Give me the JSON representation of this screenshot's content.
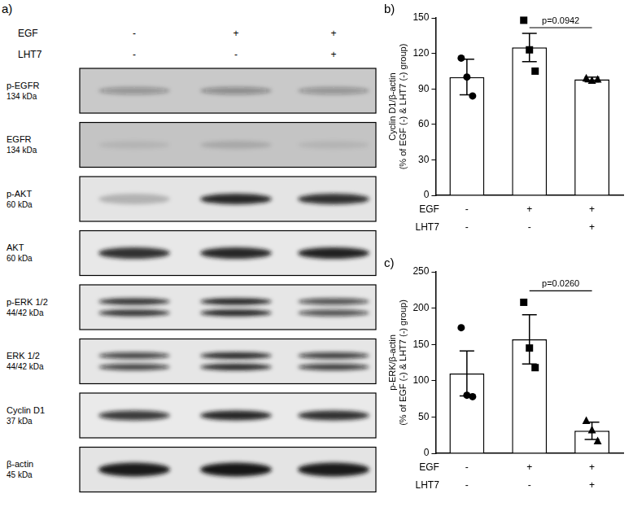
{
  "blot": {
    "label": "a)",
    "conditions": [
      {
        "name": "EGF",
        "values": [
          "-",
          "+",
          "+"
        ]
      },
      {
        "name": "LHT7",
        "values": [
          "-",
          "-",
          "+"
        ]
      }
    ],
    "rows": [
      {
        "name": "p-EGFR",
        "size": "134 kDa"
      },
      {
        "name": "EGFR",
        "size": "134 kDa"
      },
      {
        "name": "p-AKT",
        "size": "60 kDa"
      },
      {
        "name": "AKT",
        "size": "60 kDa"
      },
      {
        "name": "p-ERK 1/2",
        "size": "44/42 kDa"
      },
      {
        "name": "ERK 1/2",
        "size": "44/42 kDa"
      },
      {
        "name": "Cyclin D1",
        "size": "37 kDa"
      },
      {
        "name": "β-actin",
        "size": "45 kDa"
      }
    ]
  },
  "chart_data": [
    {
      "type": "bar",
      "label": "b)",
      "ylabel": [
        "Cyclin D1/β-actin",
        "(% of EGF (-) & LHT7 (-) group)"
      ],
      "conditions": [
        {
          "name": "EGF",
          "values": [
            "-",
            "+",
            "+"
          ]
        },
        {
          "name": "LHT7",
          "values": [
            "-",
            "-",
            "+"
          ]
        }
      ],
      "values": [
        100,
        125,
        98
      ],
      "errors": [
        15,
        12,
        2
      ],
      "points": [
        {
          "marker": "circle",
          "values": [
            116,
            100,
            84
          ]
        },
        {
          "marker": "square",
          "values": [
            148,
            123,
            105
          ]
        },
        {
          "marker": "triangle",
          "values": [
            99,
            97,
            98
          ]
        }
      ],
      "color": "#ffffff",
      "ylim": [
        0,
        150
      ],
      "yticks": [
        0,
        30,
        60,
        90,
        120,
        150
      ],
      "grid": false,
      "annotation": {
        "text": "p=0.0942",
        "from": 1,
        "to": 2
      }
    },
    {
      "type": "bar",
      "label": "c)",
      "ylabel": [
        "p-ERK/β-actin",
        "(% of EGF (-) & LHT7 (-) group)"
      ],
      "conditions": [
        {
          "name": "EGF",
          "values": [
            "-",
            "+",
            "+"
          ]
        },
        {
          "name": "LHT7",
          "values": [
            "-",
            "-",
            "+"
          ]
        }
      ],
      "values": [
        110,
        157,
        31
      ],
      "errors": [
        31,
        34,
        12
      ],
      "points": [
        {
          "marker": "circle",
          "values": [
            173,
            80,
            78
          ]
        },
        {
          "marker": "square",
          "values": [
            208,
            145,
            118
          ]
        },
        {
          "marker": "triangle",
          "values": [
            45,
            32,
            17
          ]
        }
      ],
      "color": "#ffffff",
      "ylim": [
        0,
        250
      ],
      "yticks": [
        0,
        50,
        100,
        150,
        200,
        250
      ],
      "grid": false,
      "annotation": {
        "text": "p=0.0260",
        "from": 1,
        "to": 2
      }
    }
  ]
}
